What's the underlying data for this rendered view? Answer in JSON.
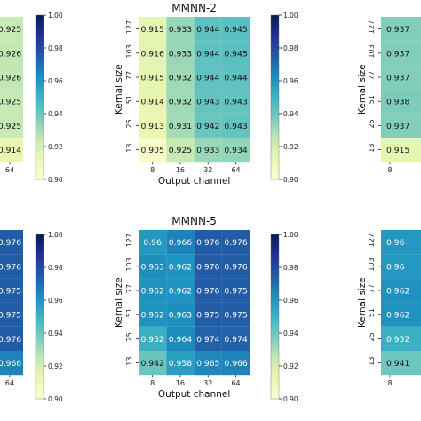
{
  "colorbar": {
    "ticks": [
      "1.00",
      "0.98",
      "0.96",
      "0.94",
      "0.92",
      "0.90"
    ],
    "min": 0.9,
    "max": 1.0,
    "colormap": "YlGnBu"
  },
  "chart_data": [
    {
      "type": "heatmap",
      "title": "MMNN-2",
      "xlabel": "Output channel",
      "ylabel": "Kernal size",
      "x_categories": [
        "8",
        "16",
        "32",
        "64"
      ],
      "y_categories": [
        "127",
        "103",
        "77",
        "51",
        "25",
        "13"
      ],
      "values": [
        [
          0.915,
          0.933,
          0.944,
          0.945
        ],
        [
          0.916,
          0.933,
          0.944,
          0.945
        ],
        [
          0.915,
          0.932,
          0.944,
          0.944
        ],
        [
          0.914,
          0.932,
          0.943,
          0.943
        ],
        [
          0.913,
          0.931,
          0.942,
          0.943
        ],
        [
          0.905,
          0.925,
          0.933,
          0.934
        ]
      ],
      "zlim": [
        0.9,
        1.0
      ]
    },
    {
      "type": "heatmap",
      "title": "MMNN-5",
      "xlabel": "Output channel",
      "ylabel": "Kernal size",
      "x_categories": [
        "8",
        "16",
        "32",
        "64"
      ],
      "y_categories": [
        "127",
        "103",
        "77",
        "51",
        "25",
        "13"
      ],
      "values": [
        [
          0.96,
          0.966,
          0.976,
          0.976
        ],
        [
          0.963,
          0.962,
          0.976,
          0.976
        ],
        [
          0.962,
          0.962,
          0.976,
          0.975
        ],
        [
          0.962,
          0.963,
          0.975,
          0.975
        ],
        [
          0.952,
          0.964,
          0.974,
          0.974
        ],
        [
          0.942,
          0.958,
          0.965,
          0.966
        ]
      ],
      "zlim": [
        0.9,
        1.0
      ]
    },
    {
      "type": "heatmap",
      "partial": "left edge",
      "title": "",
      "xlabel": "",
      "ylabel": "",
      "x_categories": [
        "64"
      ],
      "values": [
        [
          0.925
        ],
        [
          0.926
        ],
        [
          0.926
        ],
        [
          0.925
        ],
        [
          0.925
        ],
        [
          0.914
        ]
      ]
    },
    {
      "type": "heatmap",
      "partial": "left edge",
      "title": "",
      "xlabel": "",
      "ylabel": "",
      "x_categories": [
        "64"
      ],
      "values": [
        [
          0.976
        ],
        [
          0.976
        ],
        [
          0.975
        ],
        [
          0.975
        ],
        [
          0.976
        ],
        [
          0.966
        ]
      ]
    },
    {
      "type": "heatmap",
      "partial": "right edge",
      "title": "",
      "xlabel": "",
      "ylabel": "Kernal size",
      "x_categories": [
        "8"
      ],
      "y_categories": [
        "127",
        "103",
        "77",
        "51",
        "25",
        "13"
      ],
      "values": [
        [
          0.937
        ],
        [
          0.937
        ],
        [
          0.937
        ],
        [
          0.938
        ],
        [
          0.937
        ],
        [
          0.915
        ]
      ]
    },
    {
      "type": "heatmap",
      "partial": "right edge",
      "title": "",
      "xlabel": "",
      "ylabel": "Kernal size",
      "x_categories": [
        "8"
      ],
      "y_categories": [
        "127",
        "103",
        "77",
        "51",
        "25",
        "13"
      ],
      "values": [
        [
          0.96
        ],
        [
          0.96
        ],
        [
          0.962
        ],
        [
          0.962
        ],
        [
          0.952
        ],
        [
          0.941
        ]
      ]
    }
  ]
}
